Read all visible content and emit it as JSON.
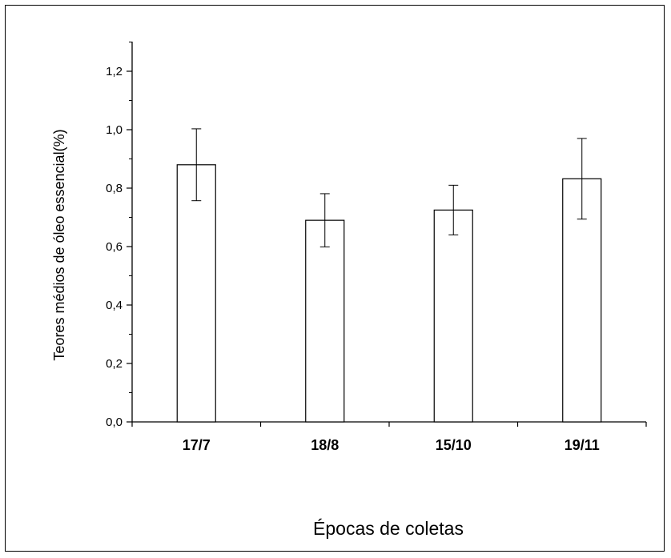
{
  "chart_data": {
    "type": "bar",
    "title": "",
    "xlabel": "Épocas de coletas",
    "ylabel": "Teores médios de óleo essencial(%)",
    "categories": [
      "17/7",
      "18/8",
      "15/10",
      "19/11"
    ],
    "values": [
      0.88,
      0.69,
      0.725,
      0.832
    ],
    "errors": [
      0.123,
      0.091,
      0.085,
      0.138
    ],
    "ylim": [
      0,
      1.3
    ],
    "yticks": [
      0.0,
      0.2,
      0.4,
      0.6,
      0.8,
      1.0,
      1.2
    ],
    "ytick_labels": [
      "0,0",
      "0,2",
      "0,4",
      "0,6",
      "0,8",
      "1,0",
      "1,2"
    ],
    "grid": false,
    "bar_fill": "#ffffff",
    "bar_stroke": "#000000"
  }
}
